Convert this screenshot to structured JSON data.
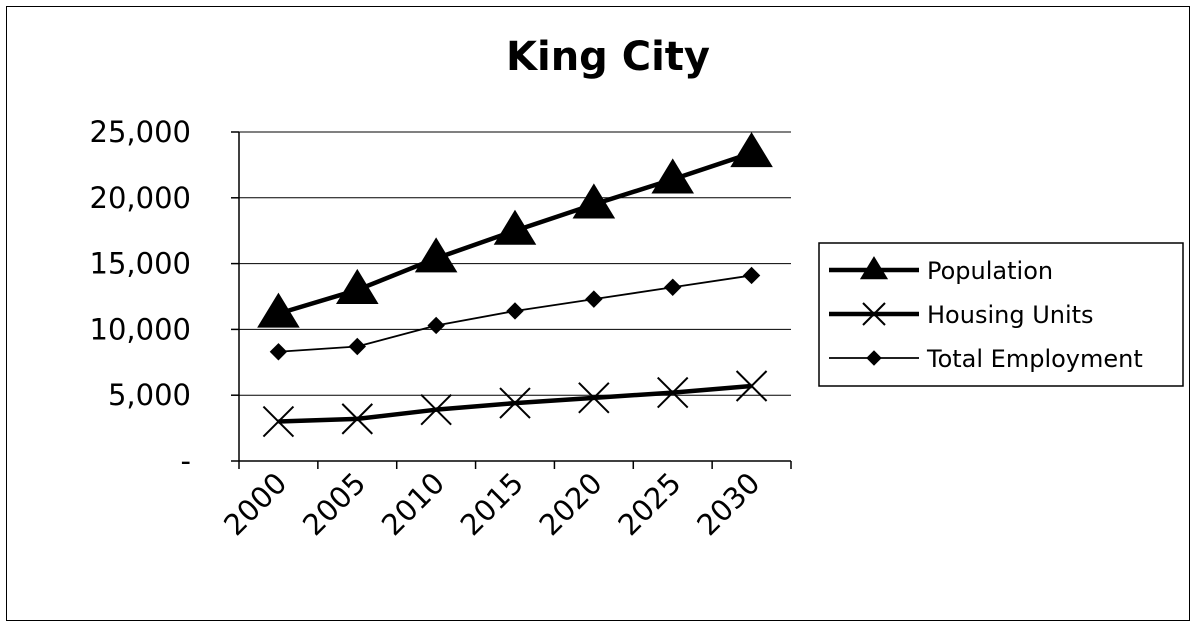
{
  "chart_data": {
    "type": "line",
    "title": "King City",
    "xlabel": "",
    "ylabel": "",
    "categories": [
      "2000",
      "2005",
      "2010",
      "2015",
      "2020",
      "2025",
      "2030"
    ],
    "ylim": [
      0,
      25000
    ],
    "y_ticks": [
      {
        "value": 0,
        "label": "-"
      },
      {
        "value": 5000,
        "label": "5,000"
      },
      {
        "value": 10000,
        "label": "10,000"
      },
      {
        "value": 15000,
        "label": "15,000"
      },
      {
        "value": 20000,
        "label": "20,000"
      },
      {
        "value": 25000,
        "label": "25,000"
      }
    ],
    "grid": true,
    "legend_position": "right",
    "series": [
      {
        "name": "Population",
        "marker": "triangle",
        "line": "thick",
        "color": "#000000",
        "values": [
          11200,
          13000,
          15400,
          17500,
          19500,
          21400,
          23400
        ]
      },
      {
        "name": "Housing Units",
        "marker": "x",
        "line": "thick",
        "color": "#000000",
        "values": [
          3000,
          3200,
          3900,
          4400,
          4800,
          5200,
          5700
        ]
      },
      {
        "name": "Total Employment",
        "marker": "diamond",
        "line": "thin",
        "color": "#000000",
        "values": [
          8300,
          8700,
          10300,
          11400,
          12300,
          13200,
          14100
        ]
      }
    ]
  }
}
